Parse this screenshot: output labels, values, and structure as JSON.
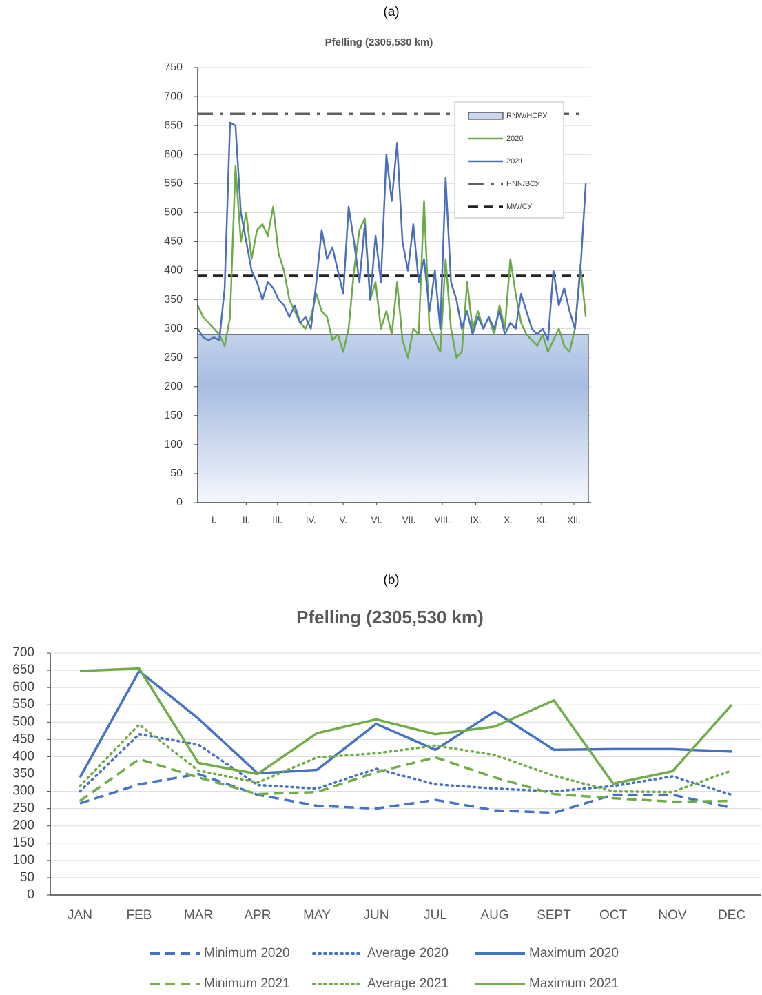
{
  "chart_data": [
    {
      "type": "line",
      "panel_label": "(a)",
      "title": "Pfelling  (2305,530 km)",
      "x": [
        0,
        5,
        10,
        15,
        20,
        25,
        30,
        35,
        40,
        45,
        50,
        55,
        60,
        65,
        70,
        75,
        80,
        85,
        90,
        95,
        100,
        105,
        110,
        115,
        120,
        125,
        130,
        135,
        140,
        145,
        150,
        155,
        160,
        165,
        170,
        175,
        180,
        185,
        190,
        195,
        200,
        205,
        210,
        215,
        220,
        225,
        230,
        235,
        240,
        245,
        250,
        255,
        260,
        265,
        270,
        275,
        280,
        285,
        290,
        295,
        300,
        305,
        310,
        315,
        320,
        325,
        330,
        335,
        340,
        345,
        350,
        355,
        360
      ],
      "xlim": [
        0,
        365
      ],
      "xticks": [
        {
          "value": 15,
          "label": "I."
        },
        {
          "value": 45,
          "label": "II."
        },
        {
          "value": 74,
          "label": "III."
        },
        {
          "value": 105,
          "label": "IV."
        },
        {
          "value": 135,
          "label": "V."
        },
        {
          "value": 166,
          "label": "VI."
        },
        {
          "value": 196,
          "label": "VII."
        },
        {
          "value": 227,
          "label": "VIII."
        },
        {
          "value": 258,
          "label": "IX."
        },
        {
          "value": 288,
          "label": "X."
        },
        {
          "value": 319,
          "label": "XI."
        },
        {
          "value": 349,
          "label": "XII."
        }
      ],
      "ylim": [
        0,
        750
      ],
      "yticks": [
        0,
        50,
        100,
        150,
        200,
        250,
        300,
        350,
        400,
        450,
        500,
        550,
        600,
        650,
        700,
        750
      ],
      "grid": true,
      "band": {
        "name": "RNW/НСРУ",
        "value": 290,
        "color": "#a5bbe0"
      },
      "series": [
        {
          "name": "2020",
          "color": "#6aab45",
          "dash": "solid",
          "values": [
            340,
            320,
            310,
            300,
            290,
            270,
            320,
            580,
            450,
            500,
            420,
            470,
            480,
            460,
            510,
            430,
            400,
            350,
            330,
            310,
            300,
            320,
            360,
            330,
            320,
            280,
            290,
            260,
            300,
            400,
            470,
            490,
            350,
            380,
            300,
            330,
            290,
            380,
            280,
            250,
            300,
            290,
            520,
            300,
            280,
            260,
            420,
            300,
            250,
            260,
            380,
            300,
            330,
            300,
            320,
            290,
            340,
            300,
            420,
            360,
            310,
            290,
            280,
            270,
            290,
            260,
            280,
            300,
            270,
            260,
            300,
            410,
            320
          ]
        },
        {
          "name": "2021",
          "color": "#4a6fbf",
          "dash": "solid",
          "values": [
            300,
            285,
            280,
            285,
            280,
            370,
            655,
            650,
            500,
            450,
            400,
            380,
            350,
            380,
            370,
            350,
            340,
            320,
            340,
            310,
            320,
            300,
            380,
            470,
            420,
            440,
            400,
            360,
            510,
            450,
            380,
            480,
            350,
            460,
            380,
            600,
            520,
            620,
            450,
            400,
            480,
            380,
            420,
            330,
            400,
            300,
            560,
            380,
            350,
            300,
            330,
            290,
            320,
            300,
            320,
            300,
            330,
            290,
            310,
            300,
            360,
            330,
            300,
            290,
            300,
            280,
            400,
            340,
            370,
            330,
            300,
            400,
            550
          ]
        }
      ],
      "reference_lines": [
        {
          "name": "HNN/ВСУ",
          "value": 670,
          "color": "#606060",
          "dash": "dashdot"
        },
        {
          "name": "MW/СУ",
          "value": 391,
          "color": "#222222",
          "dash": "dashed"
        }
      ]
    },
    {
      "type": "line",
      "panel_label": "(b)",
      "title": "Pfelling  (2305,530 km)",
      "categories": [
        "JAN",
        "FEB",
        "MAR",
        "APR",
        "MAY",
        "JUN",
        "JUL",
        "AUG",
        "SEPT",
        "OCT",
        "NOV",
        "DEC"
      ],
      "ylim": [
        0,
        700
      ],
      "yticks": [
        0,
        50,
        100,
        150,
        200,
        250,
        300,
        350,
        400,
        450,
        500,
        550,
        600,
        650,
        700
      ],
      "grid": true,
      "series": [
        {
          "name": "Minimum 2020",
          "color": "#4472c4",
          "dash": "dashed",
          "values": [
            265,
            320,
            350,
            290,
            258,
            250,
            275,
            245,
            238,
            290,
            290,
            252
          ]
        },
        {
          "name": "Average 2020",
          "color": "#4472c4",
          "dash": "dotted",
          "values": [
            300,
            465,
            435,
            318,
            308,
            365,
            320,
            308,
            300,
            315,
            343,
            290
          ]
        },
        {
          "name": "Maximum 2020",
          "color": "#4472c4",
          "dash": "solid",
          "values": [
            340,
            648,
            510,
            352,
            362,
            495,
            420,
            530,
            420,
            422,
            422,
            415
          ]
        },
        {
          "name": "Minimum 2021",
          "color": "#70ad47",
          "dash": "dashed",
          "values": [
            272,
            393,
            340,
            292,
            298,
            355,
            398,
            340,
            292,
            280,
            270,
            272
          ]
        },
        {
          "name": "Average 2021",
          "color": "#70ad47",
          "dash": "dotted",
          "values": [
            315,
            493,
            360,
            325,
            398,
            410,
            432,
            405,
            345,
            300,
            298,
            360
          ]
        },
        {
          "name": "Maximum 2021",
          "color": "#70ad47",
          "dash": "solid",
          "values": [
            648,
            655,
            382,
            350,
            468,
            508,
            465,
            487,
            563,
            322,
            358,
            550
          ]
        }
      ]
    }
  ]
}
